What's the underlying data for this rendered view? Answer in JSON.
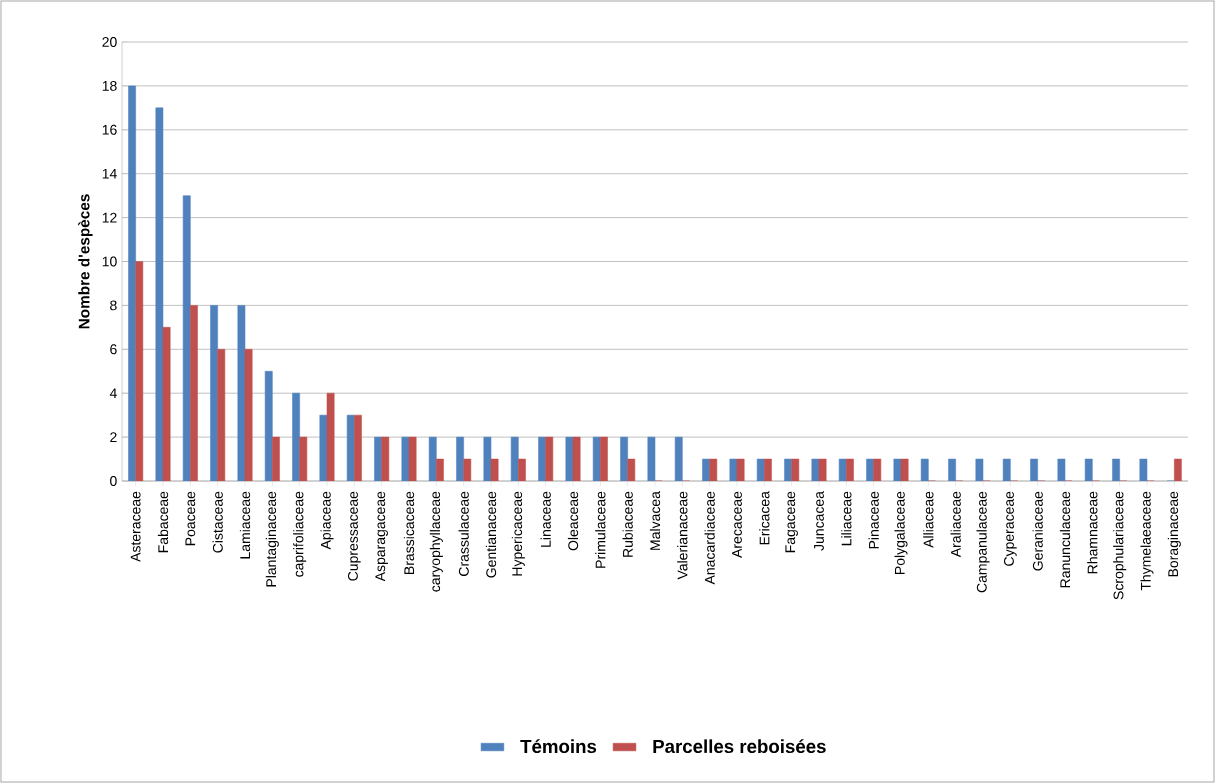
{
  "chart_data": {
    "type": "bar",
    "ylabel": "Nombre d'espèces",
    "categories": [
      "Asteraceae",
      "Fabaceae",
      "Poaceae",
      "Cistaceae",
      "Lamiaceae",
      "Plantaginaceae",
      "caprifoliaceae",
      "Apiaceae",
      "Cupressaceae",
      "Asparagaceae",
      "Brassicaceae",
      "caryophyllaceae",
      "Crassulaceae",
      "Gentianaceae",
      "Hypericaceae",
      "Linaceae",
      "Oleaceae",
      "Primulaceae",
      "Rubiaceae",
      "Malvacea",
      "Valerianaceae",
      "Anacardiaceae",
      "Arecaceae",
      "Ericacea",
      "Fagaceae",
      "Juncacea",
      "Liliaceae",
      "Pinaceae",
      "Polygalaceae",
      "Alliaceae",
      "Araliaceae",
      "Campanulaceae",
      "Cyperaceae",
      "Geraniaceae",
      "Ranunculaceae",
      "Rhamnaceae",
      "Scrophulariaceae",
      "Thymelaeaceae",
      "Boraginaceae"
    ],
    "series": [
      {
        "name": "**Témoins**",
        "color": "#4f81bd",
        "values": [
          18,
          17,
          13,
          8,
          8,
          5,
          4,
          3,
          3,
          2,
          2,
          2,
          2,
          2,
          2,
          2,
          2,
          2,
          2,
          2,
          2,
          1,
          1,
          1,
          1,
          1,
          1,
          1,
          1,
          1,
          1,
          1,
          1,
          1,
          1,
          1,
          1,
          1,
          0
        ]
      },
      {
        "name": "**Parcelles reboisées**",
        "color": "#c0504d",
        "values": [
          10,
          7,
          8,
          6,
          6,
          2,
          2,
          4,
          3,
          2,
          2,
          1,
          1,
          1,
          1,
          2,
          2,
          2,
          1,
          0,
          0,
          1,
          1,
          1,
          1,
          1,
          1,
          1,
          1,
          0,
          0,
          0,
          0,
          0,
          0,
          0,
          0,
          0,
          1
        ]
      }
    ],
    "ylim": [
      0,
      20
    ],
    "yticks": [
      0,
      2,
      4,
      6,
      8,
      10,
      12,
      14,
      16,
      18,
      20
    ],
    "grid": "y",
    "legend": "bottom"
  }
}
